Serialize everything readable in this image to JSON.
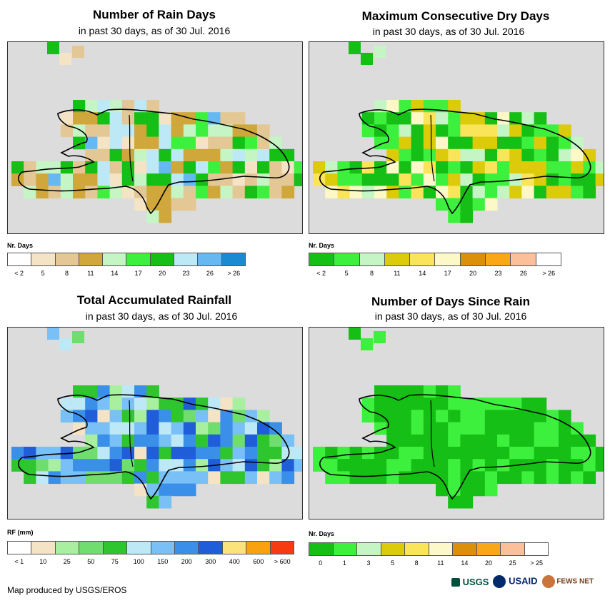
{
  "panels": [
    {
      "title": "Number of Rain Days",
      "subtitle": "in past 30 days, as of 30 Jul. 2016",
      "legend_title": "Nr. Days",
      "legend_labels": [
        "< 2",
        "5",
        "8",
        "11",
        "14",
        "17",
        "20",
        "23",
        "26",
        "> 26"
      ],
      "legend_colors": [
        "#ffffff",
        "#f5e3c6",
        "#e3c795",
        "#cfa73a",
        "#c5f5c5",
        "#3ef03e",
        "#15bf15",
        "#bde9f7",
        "#66b8f0",
        "#1a8ad1"
      ],
      "map_icon": "map-rain-days"
    },
    {
      "title": "Maximum Consecutive Dry Days",
      "subtitle": "in past 30 days, as of 30 Jul. 2016",
      "legend_title": "Nr. Days",
      "legend_labels": [
        "< 2",
        "5",
        "8",
        "11",
        "14",
        "17",
        "20",
        "23",
        "26",
        "> 26"
      ],
      "legend_colors": [
        "#15bf15",
        "#3ef03e",
        "#c5f5c5",
        "#dccb0a",
        "#f9e45a",
        "#fdf8c8",
        "#db8f0a",
        "#f9a716",
        "#fbc099",
        "#ffffff"
      ],
      "map_icon": "map-dry-days"
    },
    {
      "title": "Total Accumulated Rainfall",
      "subtitle": "in past 30 days, as of 30 Jul. 2016",
      "legend_title": "RF (mm)",
      "legend_labels": [
        "< 1",
        "10",
        "25",
        "50",
        "75",
        "100",
        "150",
        "200",
        "300",
        "400",
        "600",
        "> 600"
      ],
      "legend_colors": [
        "#ffffff",
        "#f5e3c6",
        "#a8f0a0",
        "#6fde6f",
        "#2ec52e",
        "#bde9f7",
        "#78c0f5",
        "#3a90e8",
        "#1f5ed8",
        "#fbe37b",
        "#f9a10f",
        "#f53b0f"
      ],
      "map_icon": "map-total-rainfall"
    },
    {
      "title": "Number of Days Since Rain",
      "subtitle": "in past 30 days, as of 30 Jul. 2016",
      "legend_title": "Nr. Days",
      "legend_labels": [
        "0",
        "1",
        "3",
        "5",
        "8",
        "11",
        "14",
        "20",
        "25",
        "> 25"
      ],
      "legend_colors": [
        "#15bf15",
        "#3ef03e",
        "#c5f5c5",
        "#dccb0a",
        "#f9e45a",
        "#fdf8c8",
        "#db8f0a",
        "#f9a716",
        "#fbc099",
        "#ffffff"
      ],
      "map_icon": "map-days-since-rain"
    }
  ],
  "footer": "Map produced by USGS/EROS",
  "logos": {
    "usgs": "USGS",
    "usaid": "USAID",
    "fews": "FEWS NET"
  }
}
